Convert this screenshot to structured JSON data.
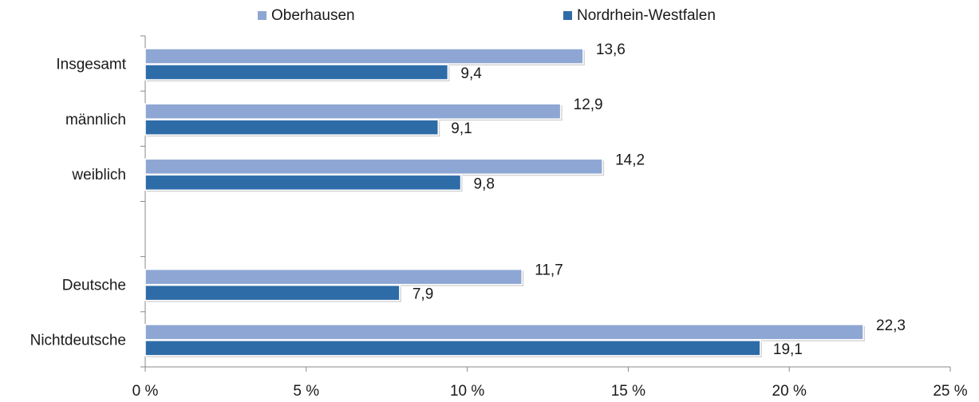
{
  "chart_data": {
    "type": "hbar",
    "categories": [
      "Insgesamt",
      "männlich",
      "weiblich",
      null,
      "Deutsche",
      "Nichtdeutsche"
    ],
    "series": [
      {
        "name": "Oberhausen",
        "color": "#8ea6d3",
        "values": [
          13.6,
          12.9,
          14.2,
          null,
          11.7,
          22.3
        ],
        "value_labels": [
          "13,6",
          "12,9",
          "14,2",
          null,
          "11,7",
          "22,3"
        ]
      },
      {
        "name": "Nordrhein-Westfalen",
        "color": "#2e6ca8",
        "values": [
          9.4,
          9.1,
          9.8,
          null,
          7.9,
          19.1
        ],
        "value_labels": [
          "9,4",
          "9,1",
          "9,8",
          null,
          "7,9",
          "19,1"
        ]
      }
    ],
    "xlim": [
      0,
      25
    ],
    "xticks": [
      {
        "value": 0,
        "label": "0 %"
      },
      {
        "value": 5,
        "label": "5 %"
      },
      {
        "value": 10,
        "label": "10 %"
      },
      {
        "value": 15,
        "label": "15 %"
      },
      {
        "value": 20,
        "label": "20 %"
      },
      {
        "value": 25,
        "label": "25 %"
      }
    ],
    "legend": "top"
  }
}
